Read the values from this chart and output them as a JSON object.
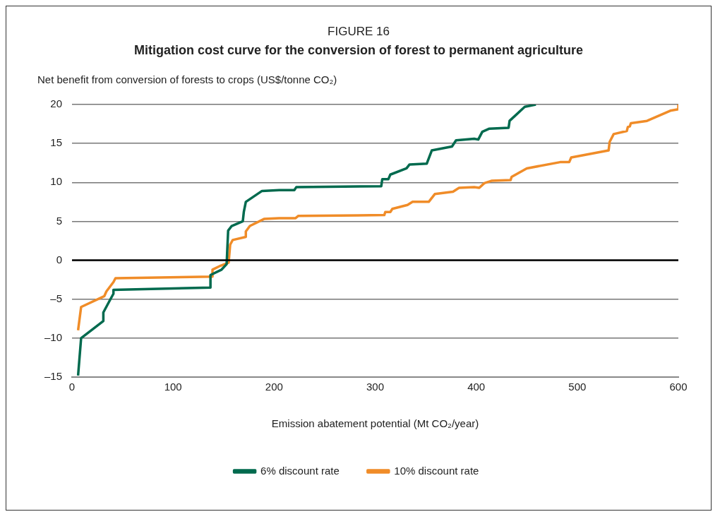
{
  "chart_data": {
    "type": "line",
    "title": "FIGURE 16",
    "subtitle": "Mitigation cost curve for the conversion of forest to permanent agriculture",
    "ylabel": "Net benefit from conversion of forests to crops (US$/tonne CO₂)",
    "xlabel": "Emission abatement potential (Mt CO₂/year)",
    "xlim": [
      0,
      600
    ],
    "xticks": [
      0,
      100,
      200,
      300,
      400,
      500,
      600
    ],
    "ylim": [
      -15,
      20
    ],
    "yticks": [
      {
        "value": -15,
        "label": "–15"
      },
      {
        "value": -10,
        "label": "–10"
      },
      {
        "value": -5,
        "label": "–5"
      },
      0,
      5,
      10,
      15,
      20
    ],
    "grid": "y",
    "legend": "bottom",
    "marker": "none",
    "line_style": "solid",
    "ref_lines": [
      {
        "axis": "y",
        "value": 0,
        "color": "#000000"
      }
    ],
    "series": [
      {
        "name": "6% discount rate",
        "color": "#006a4e",
        "x": [
          6,
          9,
          31,
          31,
          38,
          41,
          41,
          137,
          137,
          148,
          153,
          154.5,
          158,
          169,
          170,
          172,
          188,
          205,
          220,
          222,
          306,
          307,
          313,
          315,
          331,
          334,
          351,
          356,
          376,
          380,
          398,
          402,
          406,
          413,
          432,
          433,
          448,
          459
        ],
        "values": [
          -14.8,
          -10,
          -7.8,
          -6.7,
          -5,
          -4.3,
          -3.8,
          -3.5,
          -1.9,
          -1.2,
          -0.5,
          3.8,
          4.4,
          5,
          6.2,
          7.5,
          8.9,
          9,
          9,
          9.4,
          9.5,
          10.4,
          10.4,
          11,
          11.8,
          12.3,
          12.4,
          14.1,
          14.6,
          15.4,
          15.6,
          15.5,
          16.5,
          16.9,
          17,
          17.9,
          19.7,
          20
        ]
      },
      {
        "name": "10% discount rate",
        "color": "#f08c28",
        "x": [
          6,
          9,
          32,
          34,
          41,
          43,
          139,
          139,
          147,
          155,
          156.5,
          159,
          172,
          172,
          176,
          190,
          205,
          221,
          224,
          309,
          310,
          315,
          317,
          332,
          337,
          353,
          359,
          377,
          383,
          398,
          403,
          408,
          415,
          434,
          435,
          450,
          483,
          492,
          494,
          531,
          532,
          536,
          549,
          550,
          552,
          553,
          569,
          592,
          600,
          600
        ],
        "values": [
          -9,
          -6,
          -4.6,
          -4,
          -2.8,
          -2.3,
          -2.1,
          -1.2,
          -0.7,
          -0.3,
          2,
          2.6,
          3,
          3.7,
          4.4,
          5.3,
          5.4,
          5.4,
          5.7,
          5.8,
          6.2,
          6.2,
          6.6,
          7.1,
          7.5,
          7.5,
          8.5,
          8.8,
          9.3,
          9.4,
          9.3,
          9.9,
          10.2,
          10.3,
          10.7,
          11.8,
          12.6,
          12.6,
          13.2,
          14.1,
          15.2,
          16.2,
          16.6,
          17.1,
          17.2,
          17.6,
          17.9,
          19.2,
          19.4,
          20
        ]
      }
    ]
  }
}
